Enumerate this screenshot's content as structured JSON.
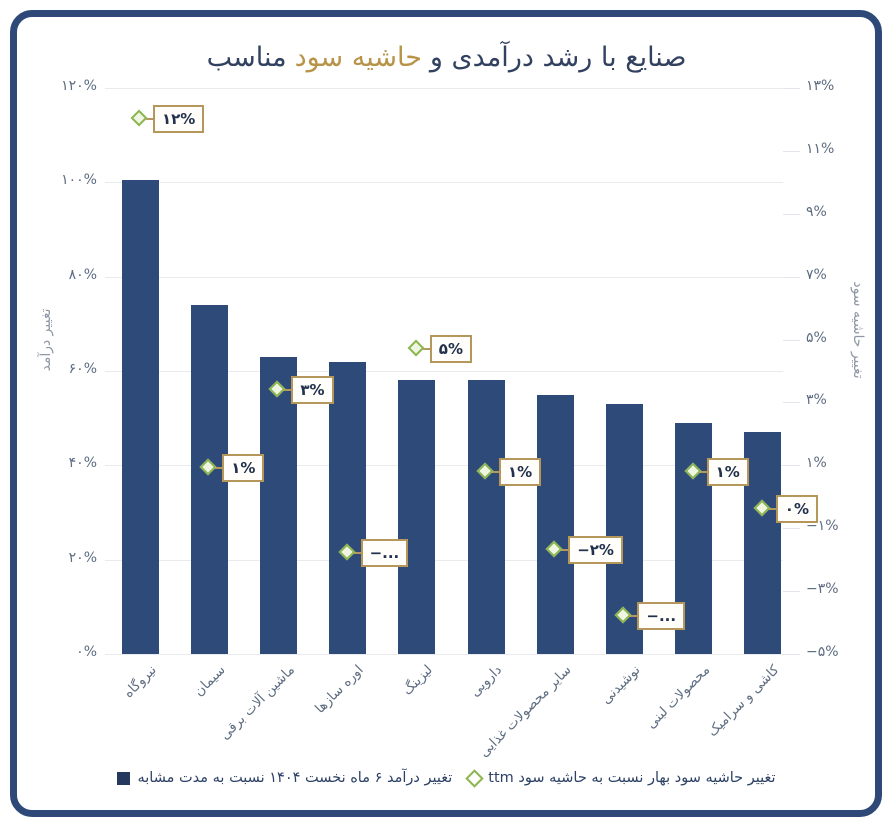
{
  "title": {
    "part1": "صنایع با رشد درآمدی و",
    "highlight": "حاشیه سود",
    "part2": "مناسب"
  },
  "chart_data": {
    "type": "bar",
    "subtype": "dual-axis bar + diamond scatter markers",
    "categories": [
      "نیروگاه",
      "سیمان",
      "ماشین آلات برقی",
      "اوره سازها",
      "لیزینگ",
      "دارویی",
      "سایر محصولات غذایی",
      "نوشیدنی",
      "محصولات لبنی",
      "کاشی و سرامیک"
    ],
    "series": [
      {
        "name": "تغییر درآمد ۶ ماه نخست ۱۴۰۴ نسبت به مدت مشابه",
        "type": "bar",
        "axis": "left",
        "color": "#2e4a78",
        "values": [
          100.5,
          74,
          63,
          62,
          58,
          58,
          55,
          53,
          49,
          47
        ]
      },
      {
        "name": "تغییر حاشیه سود بهار نسبت به حاشیه سود ttm",
        "type": "scatter",
        "marker": "diamond",
        "axis": "right",
        "color": "#8cb54e",
        "values": [
          12,
          0.9,
          3.4,
          -1.8,
          4.7,
          0.8,
          -1.7,
          -3.8,
          0.8,
          -0.4
        ],
        "labels": [
          "۱۲%",
          "۱%",
          "۳%",
          "−...",
          "۵%",
          "۱%",
          "−۲%",
          "−...",
          "۱%",
          "۰%"
        ]
      }
    ],
    "left_axis": {
      "label": "تغییر درآمد",
      "range": [
        0,
        120
      ],
      "tick_values": [
        120,
        100,
        80,
        60,
        40,
        20,
        0
      ],
      "tick_labels": [
        "۱۲۰%",
        "۱۰۰%",
        "۸۰%",
        "۶۰%",
        "۴۰%",
        "۲۰%",
        "۰%"
      ]
    },
    "right_axis": {
      "label": "تغییر حاشیه سود",
      "range": [
        -5,
        13
      ],
      "tick_values": [
        13,
        11,
        9,
        7,
        5,
        3,
        1,
        -1,
        -3,
        -5
      ],
      "tick_labels": [
        "۱۳%",
        "۱۱%",
        "۹%",
        "۷%",
        "۵%",
        "۳%",
        "۱%",
        "−۱%",
        "−۳%",
        "−۵%"
      ]
    },
    "grid": "horizontal-left-ticks",
    "legend_position": "bottom-center"
  },
  "legend": {
    "items": [
      {
        "marker": "square",
        "label": "تغییر درآمد ۶ ماه نخست ۱۴۰۴ نسبت به مدت مشابه"
      },
      {
        "marker": "diamond",
        "label": "تغییر حاشیه سود بهار نسبت به حاشیه سود ttm"
      }
    ]
  },
  "colors": {
    "bar_navy": "#2e4a78",
    "frame_navy": "#2e4977",
    "title_navy": "#31415f",
    "title_gold": "#b79448",
    "label_box_border_gold": "#b5975c",
    "diamond_green": "#8cb54e",
    "gridline": "#e9ebee",
    "tick_text": "#5d6c80",
    "axis_title_text": "#8f98a6",
    "legend_text": "#2c4166",
    "background": "#ffffff"
  }
}
